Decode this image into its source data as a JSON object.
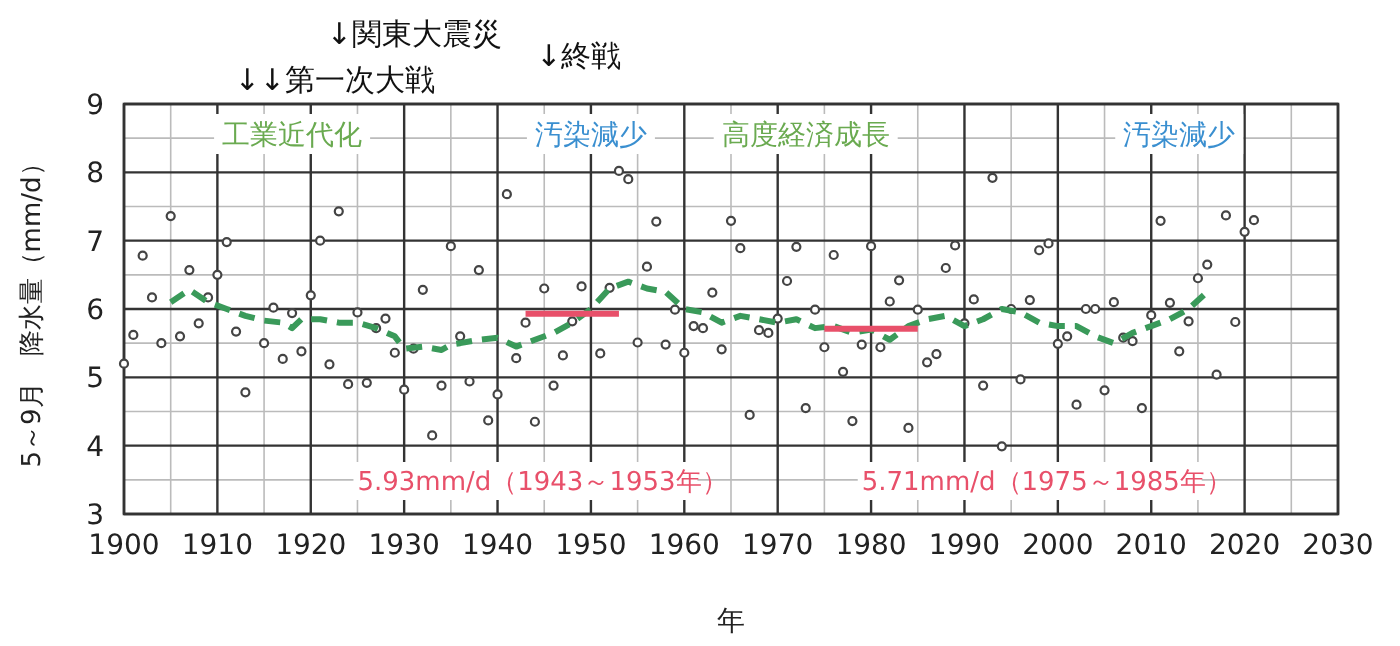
{
  "chart_data": {
    "type": "scatter",
    "xlabel": "年",
    "ylabel": "5～9月　降水量（mm/d）",
    "xlim": [
      1900,
      2030
    ],
    "xticks": [
      1900,
      1910,
      1920,
      1930,
      1940,
      1950,
      1960,
      1970,
      1980,
      1990,
      2000,
      2010,
      2020,
      2030
    ],
    "ylim": [
      3,
      9
    ],
    "yticks": [
      3,
      4,
      5,
      6,
      7,
      8,
      9
    ],
    "grid": true,
    "annotations": [
      "↓関東大震災",
      "↓↓第一次大戦",
      "↓終戦",
      "工業近代化",
      "汚染減少",
      "高度経済成長",
      "汚染減少",
      "5.93mm/d（1943～1953年）",
      "5.71mm/d（1975～1985年）"
    ],
    "series": [
      {
        "color": "#444444",
        "marker": "circle",
        "x": [
          1900,
          1901,
          1902,
          1903,
          1904,
          1905,
          1906,
          1907,
          1908,
          1909,
          1910,
          1911,
          1912,
          1913,
          1915,
          1916,
          1917,
          1918,
          1919,
          1920,
          1921,
          1922,
          1923,
          1924,
          1925,
          1926,
          1927,
          1928,
          1929,
          1930,
          1931,
          1932,
          1933,
          1934,
          1935,
          1936,
          1937,
          1938,
          1939,
          1940,
          1941,
          1942,
          1943,
          1944,
          1945,
          1946,
          1947,
          1948,
          1949,
          1951,
          1952,
          1953,
          1954,
          1955,
          1956,
          1957,
          1958,
          1959,
          1960,
          1961,
          1962,
          1963,
          1964,
          1965,
          1966,
          1967,
          1968,
          1969,
          1970,
          1971,
          1972,
          1973,
          1974,
          1975,
          1976,
          1977,
          1978,
          1979,
          1980,
          1981,
          1982,
          1983,
          1984,
          1985,
          1986,
          1987,
          1988,
          1989,
          1990,
          1991,
          1992,
          1993,
          1994,
          1995,
          1996,
          1997,
          1998,
          1999,
          2000,
          2001,
          2002,
          2003,
          2004,
          2005,
          2006,
          2007,
          2008,
          2009,
          2010,
          2011,
          2012,
          2013,
          2014,
          2015,
          2016,
          2017,
          2018,
          2019,
          2020,
          2021
        ],
        "values": [
          5.2,
          5.62,
          6.78,
          6.17,
          5.5,
          7.36,
          5.6,
          6.57,
          5.79,
          6.17,
          6.5,
          6.98,
          5.67,
          4.78,
          5.5,
          6.02,
          5.27,
          5.94,
          5.38,
          6.2,
          7.0,
          5.19,
          7.43,
          4.9,
          5.95,
          4.92,
          5.72,
          5.86,
          5.36,
          4.82,
          5.42,
          6.28,
          4.15,
          4.88,
          6.92,
          5.6,
          4.94,
          6.57,
          4.37,
          4.75,
          7.68,
          5.28,
          5.8,
          4.35,
          6.3,
          4.88,
          5.32,
          5.82,
          6.33,
          5.35,
          6.31,
          8.02,
          7.9,
          5.51,
          6.62,
          7.28,
          5.48,
          5.99,
          5.36,
          5.75,
          5.72,
          6.24,
          5.41,
          7.29,
          6.89,
          4.45,
          5.69,
          5.65,
          5.86,
          6.41,
          6.91,
          4.55,
          5.99,
          5.44,
          6.79,
          5.08,
          4.36,
          5.48,
          6.92,
          5.44,
          6.11,
          6.42,
          4.26,
          5.99,
          5.22,
          5.34,
          6.6,
          6.93,
          5.79,
          6.14,
          4.88,
          7.92,
          3.99,
          6.0,
          4.97,
          6.13,
          6.86,
          6.96,
          5.49,
          5.6,
          4.6,
          6.0,
          6.0,
          4.81,
          6.1,
          5.58,
          5.53,
          4.55,
          5.91,
          7.29,
          6.09,
          5.38,
          5.82,
          6.45,
          6.65,
          5.04,
          7.37,
          5.81,
          7.13,
          7.3
        ]
      },
      {
        "type": "line",
        "color": "#3a9a5a",
        "line_style": "dashed",
        "marker": "none",
        "x": [
          1905,
          1907,
          1909,
          1911,
          1913,
          1915,
          1917,
          1918,
          1919,
          1921,
          1923,
          1925,
          1927,
          1929,
          1930,
          1932,
          1934,
          1935,
          1936,
          1938,
          1940,
          1942,
          1944,
          1946,
          1948,
          1950,
          1952,
          1954,
          1956,
          1958,
          1960,
          1962,
          1964,
          1966,
          1968,
          1970,
          1972,
          1974,
          1976,
          1978,
          1980,
          1982,
          1984,
          1986,
          1988,
          1990,
          1992,
          1994,
          1996,
          1998,
          2000,
          2002,
          2004,
          2006,
          2008,
          2010,
          2012,
          2014,
          2016
        ],
        "values": [
          6.1,
          6.28,
          6.1,
          6.0,
          5.9,
          5.83,
          5.8,
          5.72,
          5.85,
          5.85,
          5.8,
          5.8,
          5.72,
          5.6,
          5.42,
          5.45,
          5.4,
          5.48,
          5.5,
          5.55,
          5.58,
          5.45,
          5.55,
          5.65,
          5.8,
          6.0,
          6.3,
          6.4,
          6.3,
          6.25,
          6.0,
          5.95,
          5.8,
          5.9,
          5.85,
          5.8,
          5.85,
          5.72,
          5.75,
          5.65,
          5.7,
          5.55,
          5.75,
          5.85,
          5.9,
          5.75,
          5.85,
          6.0,
          5.95,
          5.8,
          5.75,
          5.75,
          5.6,
          5.5,
          5.65,
          5.75,
          5.85,
          6.0,
          6.25
        ]
      },
      {
        "type": "line",
        "color": "#e8506a",
        "line_style": "solid",
        "marker": "none",
        "x": [
          1943,
          1953
        ],
        "values": [
          5.93,
          5.93
        ]
      },
      {
        "type": "line",
        "color": "#e8506a",
        "line_style": "solid",
        "marker": "none",
        "x": [
          1975,
          1985
        ],
        "values": [
          5.71,
          5.71
        ]
      }
    ]
  }
}
